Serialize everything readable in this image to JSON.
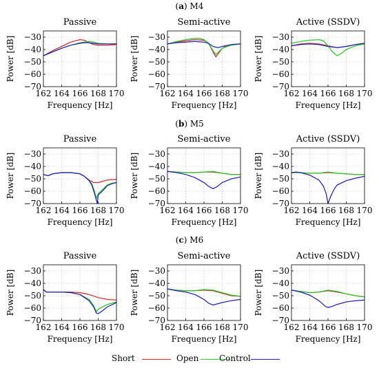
{
  "figure": {
    "rows": [
      {
        "letter": "a",
        "name": "M4"
      },
      {
        "letter": "b",
        "name": "M5"
      },
      {
        "letter": "c",
        "name": "M6"
      }
    ],
    "colors": {
      "short": "#d62728",
      "open": "#22cc22",
      "control": "#1f1fbf"
    }
  },
  "legend": [
    {
      "label": "Short",
      "color": "#d62728"
    },
    {
      "label": "Open",
      "color": "#22cc22"
    },
    {
      "label": "Control",
      "color": "#1f1fbf"
    }
  ],
  "chart_data": [
    {
      "type": "line",
      "row": "a",
      "title": "Passive",
      "xlabel": "Frequency [Hz]",
      "ylabel": "Power [dB]",
      "xlim": [
        162,
        170
      ],
      "ylim": [
        -70,
        -25
      ],
      "xticks": [
        162,
        164,
        166,
        168,
        170
      ],
      "yticks": [
        -30,
        -40,
        -50,
        -60,
        -70
      ],
      "grid": true,
      "series": [
        {
          "name": "Short",
          "color": "#d62728",
          "x": [
            162,
            163,
            164,
            165,
            166,
            166.5,
            167,
            167.5,
            168,
            169,
            170
          ],
          "y": [
            -45,
            -41,
            -37.5,
            -34,
            -32,
            -32.5,
            -34.5,
            -36,
            -36.5,
            -36.5,
            -36
          ]
        },
        {
          "name": "Open",
          "color": "#22cc22",
          "x": [
            162,
            163,
            164,
            165,
            166,
            167,
            167.5,
            168,
            169,
            170
          ],
          "y": [
            -45,
            -42,
            -39,
            -36.5,
            -34.5,
            -33.5,
            -34,
            -35,
            -35.5,
            -35.5
          ]
        },
        {
          "name": "Control",
          "color": "#1f1fbf",
          "x": [
            162,
            163,
            164,
            165,
            166,
            166.5,
            167,
            167.5,
            168,
            169,
            170
          ],
          "y": [
            -45,
            -42,
            -39,
            -36.5,
            -35,
            -34.5,
            -34.5,
            -35,
            -35.5,
            -35.5,
            -35.5
          ]
        }
      ]
    },
    {
      "type": "line",
      "row": "a",
      "title": "Semi-active",
      "xlabel": "Frequency [Hz]",
      "ylabel": "Power [dB]",
      "xlim": [
        162,
        170
      ],
      "ylim": [
        -70,
        -25
      ],
      "xticks": [
        162,
        164,
        166,
        168,
        170
      ],
      "yticks": [
        -30,
        -40,
        -50,
        -60,
        -70
      ],
      "grid": true,
      "series": [
        {
          "name": "Short",
          "color": "#d62728",
          "x": [
            162,
            163,
            164,
            165,
            166,
            166.5,
            167,
            167.3,
            167.6,
            168,
            168.5,
            169,
            170
          ],
          "y": [
            -35.5,
            -34,
            -33,
            -32,
            -32.5,
            -35,
            -42,
            -46,
            -43,
            -39,
            -37,
            -36,
            -35.5
          ]
        },
        {
          "name": "Open",
          "color": "#22cc22",
          "x": [
            162,
            163,
            164,
            165,
            165.5,
            166,
            166.5,
            167,
            167.3,
            167.6,
            168,
            169,
            170
          ],
          "y": [
            -35.5,
            -33.5,
            -32,
            -31,
            -31,
            -32,
            -35,
            -41,
            -44,
            -42,
            -39,
            -36.5,
            -35.5
          ]
        },
        {
          "name": "Control",
          "color": "#1f1fbf",
          "x": [
            162,
            163,
            164,
            165,
            166,
            166.5,
            167,
            167.5,
            168,
            169,
            170
          ],
          "y": [
            -35.5,
            -34.5,
            -34,
            -33.5,
            -34,
            -35,
            -37.5,
            -38.5,
            -37.5,
            -36,
            -35.5
          ]
        }
      ]
    },
    {
      "type": "line",
      "row": "a",
      "title": "Active (SSDV)",
      "xlabel": "Frequency [Hz]",
      "ylabel": "Power [dB]",
      "xlim": [
        162,
        170
      ],
      "ylim": [
        -70,
        -25
      ],
      "xticks": [
        162,
        164,
        166,
        168,
        170
      ],
      "yticks": [
        -30,
        -40,
        -50,
        -60,
        -70
      ],
      "grid": true,
      "series": [
        {
          "name": "Short",
          "color": "#d62728",
          "x": [
            162,
            163,
            164,
            165,
            166,
            167,
            168,
            169,
            170
          ],
          "y": [
            -37,
            -35.5,
            -35,
            -35.5,
            -37,
            -38.5,
            -37.5,
            -36,
            -35
          ]
        },
        {
          "name": "Open",
          "color": "#22cc22",
          "x": [
            162,
            163,
            164,
            165,
            165.5,
            166,
            166.5,
            167,
            167.5,
            168,
            169,
            170
          ],
          "y": [
            -35,
            -33.5,
            -32.5,
            -32,
            -33,
            -37,
            -42,
            -45,
            -43,
            -40,
            -37,
            -35.5
          ]
        },
        {
          "name": "Control",
          "color": "#1f1fbf",
          "x": [
            162,
            163,
            164,
            165,
            166,
            167,
            168,
            169,
            170
          ],
          "y": [
            -37,
            -36,
            -35.5,
            -36,
            -37.5,
            -38.5,
            -37.5,
            -36,
            -35
          ]
        }
      ]
    },
    {
      "type": "line",
      "row": "b",
      "title": "Passive",
      "xlabel": "Frequency [Hz]",
      "ylabel": "Power [dB]",
      "xlim": [
        162,
        170
      ],
      "ylim": [
        -70,
        -25
      ],
      "xticks": [
        162,
        164,
        166,
        168,
        170
      ],
      "yticks": [
        -30,
        -40,
        -50,
        -60,
        -70
      ],
      "grid": true,
      "series": [
        {
          "name": "Short",
          "color": "#d62728",
          "x": [
            162,
            162.5,
            163,
            164,
            165,
            166,
            166.5,
            167,
            167.5,
            168,
            168.5,
            169,
            170
          ],
          "y": [
            -46.5,
            -47.5,
            -46,
            -45,
            -45,
            -46,
            -48,
            -51,
            -53,
            -53,
            -52,
            -51,
            -50.5
          ]
        },
        {
          "name": "Open",
          "color": "#22cc22",
          "x": [
            162,
            162.5,
            163,
            164,
            165,
            166,
            166.5,
            167,
            167.3,
            167.6,
            167.8,
            168,
            168.3,
            168.7,
            169,
            169.5,
            170
          ],
          "y": [
            -46.5,
            -47.5,
            -46,
            -45,
            -45,
            -46,
            -48,
            -51.5,
            -54,
            -60,
            -66,
            -62,
            -60,
            -57,
            -55,
            -53.5,
            -53
          ]
        },
        {
          "name": "Control",
          "color": "#1f1fbf",
          "x": [
            162,
            162.5,
            163,
            164,
            165,
            166,
            166.5,
            167,
            167.3,
            167.6,
            167.9,
            168,
            168.3,
            168.7,
            169,
            169.5,
            170
          ],
          "y": [
            -46.5,
            -47.5,
            -46,
            -45,
            -45,
            -46,
            -48,
            -51.5,
            -55,
            -62,
            -70,
            -63,
            -61,
            -58,
            -55.5,
            -54,
            -53
          ]
        }
      ]
    },
    {
      "type": "line",
      "row": "b",
      "title": "Semi-active",
      "xlabel": "Frequency [Hz]",
      "ylabel": "Power [dB]",
      "xlim": [
        162,
        170
      ],
      "ylim": [
        -70,
        -25
      ],
      "xticks": [
        162,
        164,
        166,
        168,
        170
      ],
      "yticks": [
        -30,
        -40,
        -50,
        -60,
        -70
      ],
      "grid": true,
      "series": [
        {
          "name": "Short",
          "color": "#d62728",
          "x": [
            162,
            163,
            164,
            165,
            166,
            167,
            168,
            169,
            170
          ],
          "y": [
            -44,
            -44.5,
            -45,
            -45,
            -44.5,
            -44.5,
            -45.5,
            -46.5,
            -46.5
          ]
        },
        {
          "name": "Open",
          "color": "#22cc22",
          "x": [
            162,
            163,
            164,
            165,
            166,
            167,
            168,
            169,
            170
          ],
          "y": [
            -44,
            -44.5,
            -45,
            -45,
            -44.5,
            -44,
            -45.5,
            -46.5,
            -46.5
          ]
        },
        {
          "name": "Control",
          "color": "#1f1fbf",
          "x": [
            162,
            163,
            164,
            165,
            166,
            166.5,
            167,
            167.5,
            168,
            169,
            170
          ],
          "y": [
            -44,
            -45,
            -46.5,
            -49,
            -53,
            -56,
            -58,
            -56,
            -53,
            -50,
            -48.5
          ]
        }
      ]
    },
    {
      "type": "line",
      "row": "b",
      "title": "Active (SSDV)",
      "xlabel": "Frequency [Hz]",
      "ylabel": "Power [dB]",
      "xlim": [
        162,
        170
      ],
      "ylim": [
        -70,
        -25
      ],
      "xticks": [
        162,
        164,
        166,
        168,
        170
      ],
      "yticks": [
        -30,
        -40,
        -50,
        -60,
        -70
      ],
      "grid": true,
      "series": [
        {
          "name": "Short",
          "color": "#d62728",
          "x": [
            162,
            163,
            164,
            165,
            166,
            167,
            168,
            169,
            170
          ],
          "y": [
            -45,
            -45,
            -45.5,
            -45.5,
            -45,
            -45.5,
            -46,
            -46.5,
            -46.5
          ]
        },
        {
          "name": "Open",
          "color": "#22cc22",
          "x": [
            162,
            163,
            164,
            165,
            166,
            167,
            168,
            169,
            170
          ],
          "y": [
            -45,
            -45,
            -45.5,
            -45.5,
            -44.5,
            -45.5,
            -46,
            -46.5,
            -46.5
          ]
        },
        {
          "name": "Control",
          "color": "#1f1fbf",
          "x": [
            162,
            162.5,
            163,
            164,
            165,
            165.5,
            165.8,
            166,
            166.3,
            166.7,
            167,
            168,
            169,
            170
          ],
          "y": [
            -45,
            -44.5,
            -45,
            -47,
            -51,
            -56,
            -62,
            -70,
            -64,
            -58,
            -55,
            -51.5,
            -49.5,
            -48
          ]
        }
      ]
    },
    {
      "type": "line",
      "row": "c",
      "title": "Passive",
      "xlabel": "Frequency [Hz]",
      "ylabel": "Power [dB]",
      "xlim": [
        162,
        170
      ],
      "ylim": [
        -70,
        -25
      ],
      "xticks": [
        162,
        164,
        166,
        168,
        170
      ],
      "yticks": [
        -30,
        -40,
        -50,
        -60,
        -70
      ],
      "grid": true,
      "series": [
        {
          "name": "Short",
          "color": "#d62728",
          "x": [
            162,
            162.3,
            163,
            164,
            165,
            166,
            167,
            168,
            169,
            170
          ],
          "y": [
            -45,
            -47,
            -47,
            -47,
            -47,
            -47.5,
            -49,
            -51.5,
            -53,
            -53.5
          ]
        },
        {
          "name": "Open",
          "color": "#22cc22",
          "x": [
            162,
            162.3,
            163,
            164,
            165,
            166,
            166.5,
            167,
            167.5,
            167.8,
            168,
            168.5,
            169,
            170
          ],
          "y": [
            -45,
            -47,
            -47,
            -47,
            -47.5,
            -49,
            -51,
            -53,
            -58,
            -63,
            -61,
            -59,
            -57,
            -55
          ]
        },
        {
          "name": "Control",
          "color": "#1f1fbf",
          "x": [
            162,
            162.3,
            163,
            164,
            165,
            166,
            166.5,
            167,
            167.5,
            167.8,
            168,
            168.5,
            169,
            170
          ],
          "y": [
            -45,
            -47,
            -47,
            -47,
            -47.5,
            -49,
            -51.5,
            -54,
            -59,
            -64,
            -64.5,
            -62,
            -59,
            -55.5
          ]
        }
      ]
    },
    {
      "type": "line",
      "row": "c",
      "title": "Semi-active",
      "xlabel": "Frequency [Hz]",
      "ylabel": "Power [dB]",
      "xlim": [
        162,
        170
      ],
      "ylim": [
        -70,
        -25
      ],
      "xticks": [
        162,
        164,
        166,
        168,
        170
      ],
      "yticks": [
        -30,
        -40,
        -50,
        -60,
        -70
      ],
      "grid": true,
      "series": [
        {
          "name": "Short",
          "color": "#d62728",
          "x": [
            162,
            163,
            164,
            165,
            166,
            167,
            168,
            169,
            170
          ],
          "y": [
            -44.5,
            -45.5,
            -46,
            -46,
            -45.5,
            -46,
            -48,
            -50,
            -50.5
          ]
        },
        {
          "name": "Open",
          "color": "#22cc22",
          "x": [
            162,
            163,
            164,
            165,
            166,
            167,
            168,
            169,
            170
          ],
          "y": [
            -44.5,
            -45.5,
            -46,
            -46,
            -45,
            -45.5,
            -47.5,
            -49.5,
            -50.5
          ]
        },
        {
          "name": "Control",
          "color": "#1f1fbf",
          "x": [
            162,
            163,
            164,
            165,
            166,
            166.5,
            167,
            168,
            169,
            170
          ],
          "y": [
            -44.5,
            -46,
            -47,
            -49,
            -53,
            -56,
            -57.5,
            -55.5,
            -54,
            -53
          ]
        }
      ]
    },
    {
      "type": "line",
      "row": "c",
      "title": "Active (SSDV)",
      "xlabel": "Frequency [Hz]",
      "ylabel": "Power [dB]",
      "xlim": [
        162,
        170
      ],
      "ylim": [
        -70,
        -25
      ],
      "xticks": [
        162,
        164,
        166,
        168,
        170
      ],
      "yticks": [
        -30,
        -40,
        -50,
        -60,
        -70
      ],
      "grid": true,
      "series": [
        {
          "name": "Short",
          "color": "#d62728",
          "x": [
            162,
            163,
            164,
            165,
            166,
            167,
            168,
            169,
            170
          ],
          "y": [
            -45.5,
            -46.5,
            -47.5,
            -47,
            -46,
            -47,
            -48.5,
            -50,
            -51
          ]
        },
        {
          "name": "Open",
          "color": "#22cc22",
          "x": [
            162,
            163,
            164,
            165,
            166,
            167,
            168,
            169,
            170
          ],
          "y": [
            -45.5,
            -46.5,
            -47.5,
            -47,
            -45.5,
            -46.5,
            -48.5,
            -50,
            -51
          ]
        },
        {
          "name": "Control",
          "color": "#1f1fbf",
          "x": [
            162,
            163,
            164,
            165,
            165.7,
            166,
            166.5,
            167,
            168,
            169,
            170
          ],
          "y": [
            -45.5,
            -47,
            -49.5,
            -54,
            -58.5,
            -59.5,
            -58.5,
            -57,
            -55,
            -54,
            -53.5
          ]
        }
      ]
    }
  ]
}
